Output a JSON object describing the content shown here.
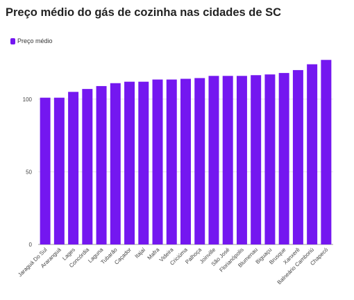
{
  "title": "Preço médio do gás de cozinha nas cidades de SC",
  "colors": {
    "bar": "#7417f0",
    "grid": "#e3e3e3",
    "axis": "#999999"
  },
  "chart_data": {
    "type": "bar",
    "title": "Preço médio do gás de cozinha nas cidades de SC",
    "xlabel": "",
    "ylabel": "",
    "ylim": [
      0,
      130
    ],
    "yticks": [
      0,
      50,
      100
    ],
    "grid": true,
    "legend_position": "top-left",
    "categories": [
      "Jaraguá Do Sul",
      "Araranguá",
      "Lages",
      "Concórdia",
      "Laguna",
      "Tubarão",
      "Caçador",
      "Itajaí",
      "Mafra",
      "Videira",
      "Criciúma",
      "Palhoça",
      "Joinville",
      "São José",
      "Florianópolis",
      "Blumenau",
      "Biguaçu",
      "Brusque",
      "Xanxerê",
      "Balneário Camboriú",
      "Chapecó"
    ],
    "series": [
      {
        "name": "Preço médio",
        "values": [
          101,
          101,
          105,
          107,
          109,
          111,
          112,
          112,
          113.5,
          113.5,
          114,
          114.5,
          116,
          116,
          116,
          116.5,
          117,
          118,
          120,
          124,
          127
        ]
      }
    ]
  }
}
